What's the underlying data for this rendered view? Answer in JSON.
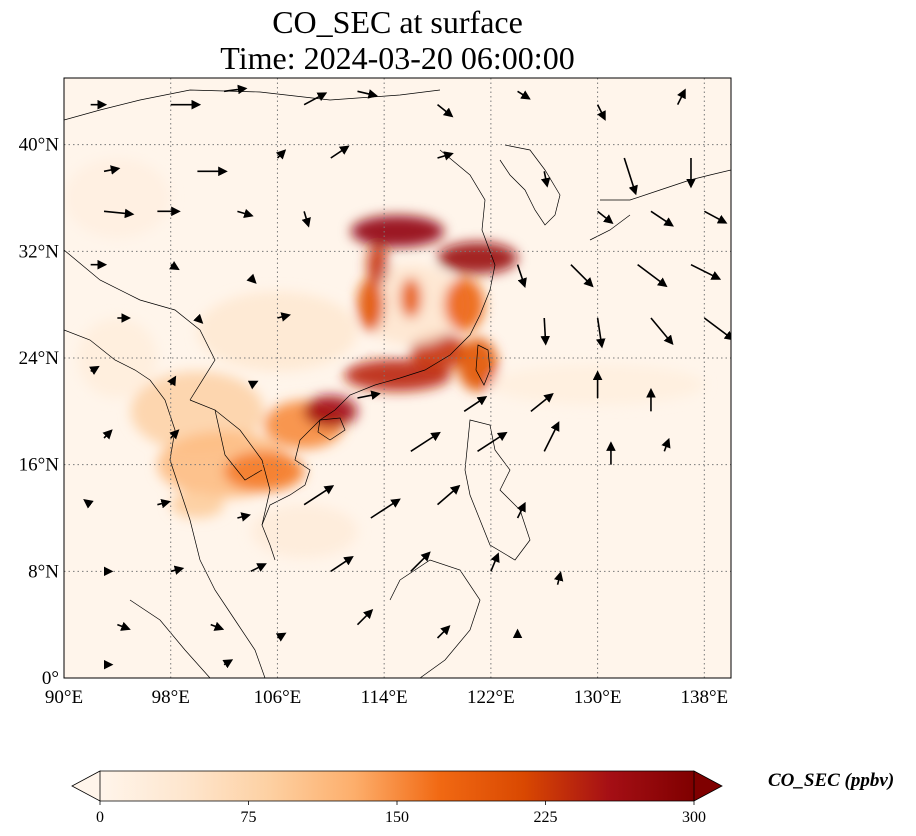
{
  "title": {
    "line1": "CO_SEC at surface",
    "line2": "Time: 2024-03-20 06:00:00"
  },
  "map": {
    "extent": {
      "lon_min": 90,
      "lon_max": 140,
      "lat_min": 0,
      "lat_max": 45
    },
    "gridlines": "dotted",
    "lon_ticks": [
      {
        "value": 90,
        "label": "90°E"
      },
      {
        "value": 98,
        "label": "98°E"
      },
      {
        "value": 106,
        "label": "106°E"
      },
      {
        "value": 114,
        "label": "114°E"
      },
      {
        "value": 122,
        "label": "122°E"
      },
      {
        "value": 130,
        "label": "130°E"
      },
      {
        "value": 138,
        "label": "138°E"
      }
    ],
    "lat_ticks": [
      {
        "value": 0,
        "label": "0°"
      },
      {
        "value": 8,
        "label": "8°N"
      },
      {
        "value": 16,
        "label": "16°N"
      },
      {
        "value": 24,
        "label": "24°N"
      },
      {
        "value": 32,
        "label": "32°N"
      },
      {
        "value": 40,
        "label": "40°N"
      }
    ],
    "background_color": "#fff5eb",
    "coastline_color": "#000000"
  },
  "plumes": [
    {
      "lon": 94,
      "lat": 36,
      "rlon": 4,
      "rlat": 3,
      "value": 15
    },
    {
      "lon": 106,
      "lat": 26,
      "rlon": 6,
      "rlat": 3,
      "value": 35
    },
    {
      "lon": 100,
      "lat": 20,
      "rlon": 5,
      "rlat": 3,
      "value": 80
    },
    {
      "lon": 102,
      "lat": 16,
      "rlon": 5,
      "rlat": 2.5,
      "value": 110
    },
    {
      "lon": 105,
      "lat": 15.5,
      "rlon": 3,
      "rlat": 1.5,
      "value": 160
    },
    {
      "lon": 100,
      "lat": 13,
      "rlon": 2,
      "rlat": 1,
      "value": 90
    },
    {
      "lon": 108,
      "lat": 19,
      "rlon": 3,
      "rlat": 1.8,
      "value": 150
    },
    {
      "lon": 110,
      "lat": 20,
      "rlon": 2,
      "rlat": 1.2,
      "value": 260
    },
    {
      "lon": 115,
      "lat": 22.7,
      "rlon": 4,
      "rlat": 1.2,
      "value": 240
    },
    {
      "lon": 118,
      "lat": 24.5,
      "rlon": 2,
      "rlat": 1.5,
      "value": 230
    },
    {
      "lon": 121,
      "lat": 23.5,
      "rlon": 1.5,
      "rlat": 2,
      "value": 200
    },
    {
      "lon": 116,
      "lat": 28,
      "rlon": 4,
      "rlat": 3,
      "value": 40
    },
    {
      "lon": 113,
      "lat": 28,
      "rlon": 1,
      "rlat": 2,
      "value": 200
    },
    {
      "lon": 116,
      "lat": 28.5,
      "rlon": 0.8,
      "rlat": 1.5,
      "value": 190
    },
    {
      "lon": 115,
      "lat": 33.5,
      "rlon": 3.5,
      "rlat": 1.2,
      "value": 280
    },
    {
      "lon": 121,
      "lat": 31.5,
      "rlon": 3,
      "rlat": 1.2,
      "value": 270
    },
    {
      "lon": 113.5,
      "lat": 31,
      "rlon": 0.8,
      "rlat": 1.5,
      "value": 230
    },
    {
      "lon": 120,
      "lat": 28,
      "rlon": 1.5,
      "rlat": 2,
      "value": 180
    },
    {
      "lon": 108,
      "lat": 11,
      "rlon": 4,
      "rlat": 2,
      "value": 25
    },
    {
      "lon": 130,
      "lat": 22,
      "rlon": 8,
      "rlat": 1.5,
      "value": 18
    },
    {
      "lon": 94,
      "lat": 24,
      "rlon": 3,
      "rlat": 3,
      "value": 20
    }
  ],
  "wind_vectors": [
    {
      "lon": 92,
      "lat": 43,
      "u": 1,
      "v": 0
    },
    {
      "lon": 98,
      "lat": 43,
      "u": 2,
      "v": 0
    },
    {
      "lon": 102,
      "lat": 44,
      "u": 1.5,
      "v": 0.2
    },
    {
      "lon": 108,
      "lat": 43,
      "u": 1.5,
      "v": 0.8
    },
    {
      "lon": 112,
      "lat": 44,
      "u": 1.3,
      "v": -0.3
    },
    {
      "lon": 118,
      "lat": 43,
      "u": 1,
      "v": -0.8
    },
    {
      "lon": 124,
      "lat": 44,
      "u": 0.8,
      "v": -0.5
    },
    {
      "lon": 130,
      "lat": 43,
      "u": 0.5,
      "v": -1
    },
    {
      "lon": 136,
      "lat": 43,
      "u": 0.5,
      "v": 1
    },
    {
      "lon": 93,
      "lat": 38,
      "u": 1,
      "v": 0.2
    },
    {
      "lon": 100,
      "lat": 38,
      "u": 2,
      "v": 0
    },
    {
      "lon": 106,
      "lat": 39,
      "u": 0.5,
      "v": 0.5
    },
    {
      "lon": 110,
      "lat": 39,
      "u": 1.2,
      "v": 0.8
    },
    {
      "lon": 118,
      "lat": 39,
      "u": 1,
      "v": 0.3
    },
    {
      "lon": 126,
      "lat": 38,
      "u": 0.2,
      "v": -1
    },
    {
      "lon": 132,
      "lat": 39,
      "u": 0.8,
      "v": -2.5
    },
    {
      "lon": 137,
      "lat": 39,
      "u": 0,
      "v": -2
    },
    {
      "lon": 93,
      "lat": 35,
      "u": 2,
      "v": -0.2
    },
    {
      "lon": 97,
      "lat": 35,
      "u": 1.5,
      "v": 0
    },
    {
      "lon": 103,
      "lat": 35,
      "u": 1,
      "v": -0.3
    },
    {
      "lon": 108,
      "lat": 35,
      "u": 0.3,
      "v": -1
    },
    {
      "lon": 130,
      "lat": 35,
      "u": 1,
      "v": -0.8
    },
    {
      "lon": 134,
      "lat": 35,
      "u": 1.5,
      "v": -1
    },
    {
      "lon": 138,
      "lat": 35,
      "u": 1.5,
      "v": -0.8
    },
    {
      "lon": 92,
      "lat": 31,
      "u": 1,
      "v": 0
    },
    {
      "lon": 98,
      "lat": 31,
      "u": 0.5,
      "v": -0.3
    },
    {
      "lon": 104,
      "lat": 30,
      "u": 0.3,
      "v": -0.3
    },
    {
      "lon": 124,
      "lat": 31,
      "u": 0.5,
      "v": -1.5
    },
    {
      "lon": 128,
      "lat": 31,
      "u": 1.5,
      "v": -1.5
    },
    {
      "lon": 133,
      "lat": 31,
      "u": 2,
      "v": -1.5
    },
    {
      "lon": 137,
      "lat": 31,
      "u": 2,
      "v": -1
    },
    {
      "lon": 94,
      "lat": 27,
      "u": 0.8,
      "v": 0
    },
    {
      "lon": 100,
      "lat": 27,
      "u": 0.3,
      "v": -0.3
    },
    {
      "lon": 106,
      "lat": 27,
      "u": 0.8,
      "v": 0.2
    },
    {
      "lon": 126,
      "lat": 27,
      "u": 0.1,
      "v": -1.8
    },
    {
      "lon": 130,
      "lat": 27,
      "u": 0.3,
      "v": -2
    },
    {
      "lon": 134,
      "lat": 27,
      "u": 1.5,
      "v": -1.8
    },
    {
      "lon": 138,
      "lat": 27,
      "u": 2,
      "v": -1.5
    },
    {
      "lon": 92,
      "lat": 23,
      "u": 0.5,
      "v": 0.3
    },
    {
      "lon": 98,
      "lat": 22,
      "u": 0.3,
      "v": 0.5
    },
    {
      "lon": 104,
      "lat": 22,
      "u": 0.4,
      "v": 0.2
    },
    {
      "lon": 112,
      "lat": 21,
      "u": 1.5,
      "v": 0.3
    },
    {
      "lon": 120,
      "lat": 20,
      "u": 1.5,
      "v": 1
    },
    {
      "lon": 125,
      "lat": 20,
      "u": 1.5,
      "v": 1.2
    },
    {
      "lon": 130,
      "lat": 21,
      "u": 0,
      "v": 1.8
    },
    {
      "lon": 134,
      "lat": 20,
      "u": 0,
      "v": 1.5
    },
    {
      "lon": 93,
      "lat": 18,
      "u": 0.5,
      "v": 0.5
    },
    {
      "lon": 98,
      "lat": 18,
      "u": 0.5,
      "v": 0.5
    },
    {
      "lon": 116,
      "lat": 17,
      "u": 2,
      "v": 1.3
    },
    {
      "lon": 121,
      "lat": 17,
      "u": 2,
      "v": 1.3
    },
    {
      "lon": 126,
      "lat": 17,
      "u": 1,
      "v": 2
    },
    {
      "lon": 131,
      "lat": 16,
      "u": 0,
      "v": 1.5
    },
    {
      "lon": 135,
      "lat": 17,
      "u": 0.3,
      "v": 0.8
    },
    {
      "lon": 92,
      "lat": 13,
      "u": -0.4,
      "v": 0.3
    },
    {
      "lon": 97,
      "lat": 13,
      "u": 0.8,
      "v": 0.2
    },
    {
      "lon": 103,
      "lat": 12,
      "u": 0.8,
      "v": 0.2
    },
    {
      "lon": 108,
      "lat": 13,
      "u": 2,
      "v": 1.3
    },
    {
      "lon": 113,
      "lat": 12,
      "u": 2,
      "v": 1.3
    },
    {
      "lon": 118,
      "lat": 13,
      "u": 1.5,
      "v": 1.3
    },
    {
      "lon": 124,
      "lat": 12,
      "u": 0.5,
      "v": 1
    },
    {
      "lon": 93,
      "lat": 8,
      "u": 0.5,
      "v": 0
    },
    {
      "lon": 98,
      "lat": 8,
      "u": 0.8,
      "v": 0.2
    },
    {
      "lon": 104,
      "lat": 8,
      "u": 1,
      "v": 0.5
    },
    {
      "lon": 110,
      "lat": 8,
      "u": 1.5,
      "v": 1
    },
    {
      "lon": 116,
      "lat": 8,
      "u": 1.3,
      "v": 1.3
    },
    {
      "lon": 122,
      "lat": 8,
      "u": 0.5,
      "v": 1.2
    },
    {
      "lon": 127,
      "lat": 7,
      "u": 0.2,
      "v": 0.8
    },
    {
      "lon": 94,
      "lat": 4,
      "u": 0.8,
      "v": -0.3
    },
    {
      "lon": 101,
      "lat": 4,
      "u": 0.8,
      "v": -0.3
    },
    {
      "lon": 106,
      "lat": 3,
      "u": 0.5,
      "v": 0.3
    },
    {
      "lon": 112,
      "lat": 4,
      "u": 1,
      "v": 1
    },
    {
      "lon": 118,
      "lat": 3,
      "u": 0.8,
      "v": 0.8
    },
    {
      "lon": 124,
      "lat": 3,
      "u": 0,
      "v": 0.5
    },
    {
      "lon": 93,
      "lat": 1,
      "u": 0.5,
      "v": 0
    },
    {
      "lon": 102,
      "lat": 1,
      "u": 0.5,
      "v": 0.3
    }
  ],
  "colorbar": {
    "label": "CO_SEC (ppbv)",
    "vmin": 0,
    "vmax": 300,
    "ticks": [
      {
        "value": 0,
        "label": "0"
      },
      {
        "value": 75,
        "label": "75"
      },
      {
        "value": 150,
        "label": "150"
      },
      {
        "value": 225,
        "label": "225"
      },
      {
        "value": 300,
        "label": "300"
      }
    ],
    "extend": "both",
    "colormap": [
      "#fff5eb",
      "#fee6ce",
      "#fdd0a2",
      "#fdae6b",
      "#f16913",
      "#d94801",
      "#a50f15",
      "#7f0000"
    ]
  }
}
